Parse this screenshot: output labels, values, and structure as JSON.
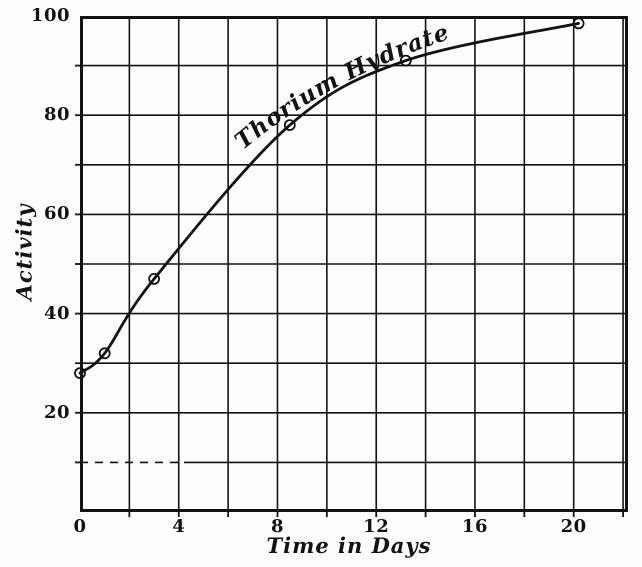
{
  "figure": {
    "background_color": "#fdfdfb",
    "ink_color": "#121212"
  },
  "chart_data": {
    "type": "line",
    "title": "",
    "series_label": "Thorium Hydrate",
    "xlabel": "Time in Days",
    "ylabel": "Activity",
    "x": [
      0,
      1,
      3,
      8.5,
      13.2,
      20.2
    ],
    "y": [
      28,
      32,
      47,
      78,
      91,
      98.5
    ],
    "xlim": [
      0,
      22.2
    ],
    "ylim": [
      0,
      100
    ],
    "x_ticks": [
      {
        "value": 0,
        "label": "0"
      },
      {
        "value": 4,
        "label": "4"
      },
      {
        "value": 8,
        "label": "8"
      },
      {
        "value": 12,
        "label": "12"
      },
      {
        "value": 16,
        "label": "16"
      },
      {
        "value": 20,
        "label": "20"
      }
    ],
    "y_ticks": [
      {
        "value": 20,
        "label": "20"
      },
      {
        "value": 40,
        "label": "40"
      },
      {
        "value": 60,
        "label": "60"
      },
      {
        "value": 80,
        "label": "80"
      },
      {
        "value": 100,
        "label": "100"
      }
    ],
    "x_grid_step": 2,
    "y_grid_step": 10,
    "grid": true,
    "marker": "open-circle",
    "legend_position": "along-curve"
  }
}
